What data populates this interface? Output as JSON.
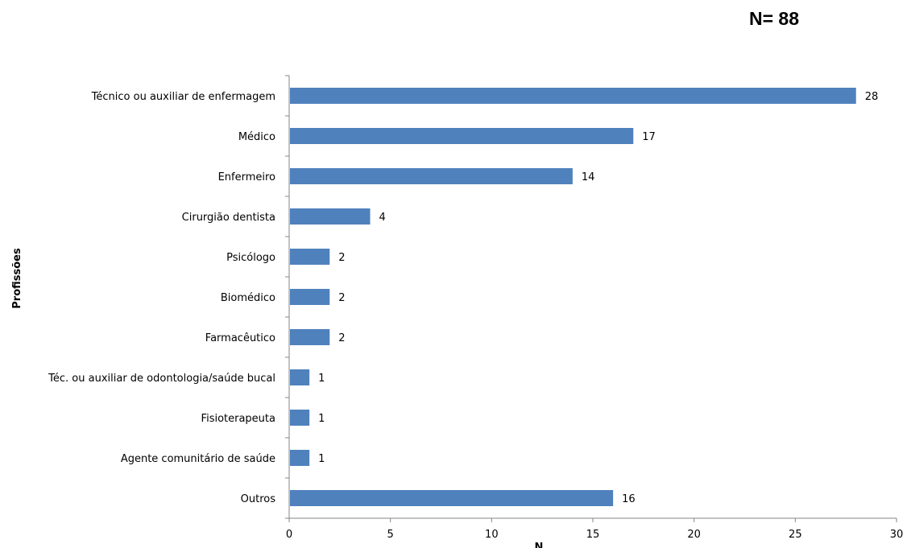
{
  "header": {
    "sample_size": "N= 88"
  },
  "chart_data": {
    "type": "bar",
    "orientation": "horizontal",
    "title": "",
    "xlabel": "N",
    "ylabel": "Profissões",
    "xlim": [
      0,
      30
    ],
    "xticks": [
      0,
      5,
      10,
      15,
      20,
      25,
      30
    ],
    "grid": false,
    "legend": "none",
    "bar_color": "#4F81BD",
    "categories": [
      "Técnico ou auxiliar de enfermagem",
      "Médico",
      "Enfermeiro",
      "Cirurgião dentista",
      "Psicólogo",
      "Biomédico",
      "Farmacêutico",
      "Téc. ou auxiliar de odontologia/saúde bucal",
      "Fisioterapeuta",
      "Agente comunitário de saúde",
      "Outros"
    ],
    "values": [
      28,
      17,
      14,
      4,
      2,
      2,
      2,
      1,
      1,
      1,
      16
    ]
  }
}
